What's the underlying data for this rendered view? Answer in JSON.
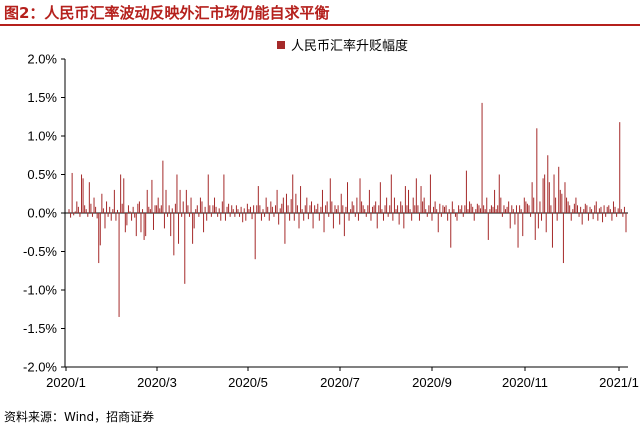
{
  "figure": {
    "title": "图2：人民币汇率波动反映外汇市场仍能自求平衡",
    "source": "资料来源：Wind，招商证券"
  },
  "colors": {
    "title": "#b5201c",
    "series": "#a52a2a",
    "axis": "#000000"
  },
  "chart_data": {
    "type": "bar",
    "title": "",
    "xlabel": "",
    "ylabel": "",
    "legend": {
      "position": "top-center"
    },
    "grid": false,
    "ylim": [
      -2.0,
      2.0
    ],
    "ytick_labels": [
      "2.0%",
      "1.5%",
      "1.0%",
      "0.5%",
      "0.0%",
      "-0.5%",
      "-1.0%",
      "-1.5%",
      "-2.0%"
    ],
    "xtick_labels": [
      "2020/1",
      "2020/3",
      "2020/5",
      "2020/7",
      "2020/9",
      "2020/11",
      "2021/1"
    ],
    "x_start": "2020-01-02",
    "x_end": "2021-01-31",
    "series": [
      {
        "name": "人民币汇率升贬幅度",
        "unit": "%",
        "values": [
          0.05,
          -0.06,
          0.52,
          -0.03,
          0.02,
          0.15,
          0.08,
          -0.05,
          0.5,
          0.45,
          0.1,
          0.05,
          -0.05,
          0.4,
          0.12,
          -0.05,
          0.2,
          0.08,
          -0.07,
          -0.65,
          -0.42,
          0.25,
          0.06,
          -0.2,
          0.15,
          -0.05,
          0.08,
          -0.1,
          0.05,
          0.3,
          -0.1,
          0.04,
          -1.35,
          0.5,
          0.12,
          0.45,
          -0.25,
          -0.16,
          0.1,
          0.02,
          -0.1,
          0.08,
          -0.06,
          -0.3,
          0.12,
          0.15,
          -0.25,
          0.05,
          -0.35,
          -0.3,
          0.3,
          0.08,
          0.05,
          0.43,
          -0.22,
          0.1,
          0.1,
          0.2,
          0.06,
          0.1,
          0.68,
          -0.2,
          0.3,
          -0.05,
          0.1,
          -0.3,
          0.06,
          -0.55,
          0.12,
          0.5,
          -0.4,
          0.3,
          -0.05,
          0.15,
          -0.92,
          0.3,
          0.1,
          -0.05,
          0.2,
          -0.4,
          -0.2,
          0.05,
          0.1,
          -0.05,
          0.2,
          0.15,
          -0.25,
          0.08,
          -0.1,
          0.5,
          0.1,
          -0.05,
          0.1,
          0.2,
          0.08,
          -0.05,
          0.06,
          -0.1,
          0.15,
          0.5,
          -0.1,
          0.08,
          0.12,
          -0.05,
          0.1,
          0.05,
          -0.05,
          0.1,
          0.05,
          -0.05,
          0.08,
          -0.12,
          0.06,
          -0.1,
          0.12,
          0.05,
          0.08,
          -0.08,
          0.1,
          -0.6,
          0.1,
          0.35,
          0.1,
          -0.1,
          0.05,
          -0.05,
          0.2,
          0.08,
          -0.1,
          0.15,
          0.08,
          -0.05,
          0.1,
          0.3,
          -0.15,
          0.06,
          0.12,
          0.2,
          -0.4,
          0.25,
          0.1,
          -0.1,
          0.18,
          0.5,
          -0.1,
          0.25,
          0.1,
          -0.2,
          0.35,
          0.05,
          -0.1,
          0.1,
          0.2,
          -0.08,
          0.1,
          0.15,
          -0.2,
          0.1,
          0.05,
          0.12,
          -0.1,
          0.08,
          0.3,
          -0.25,
          0.1,
          0.15,
          -0.05,
          0.45,
          0.15,
          -0.2,
          0.1,
          0.05,
          0.1,
          -0.15,
          0.25,
          0.1,
          -0.3,
          0.08,
          0.4,
          -0.1,
          0.05,
          0.15,
          0.1,
          -0.05,
          0.2,
          -0.1,
          0.45,
          0.15,
          0.1,
          0.05,
          -0.05,
          0.1,
          0.3,
          -0.1,
          0.08,
          0.1,
          0.15,
          -0.2,
          0.1,
          0.4,
          0.05,
          -0.1,
          0.1,
          0.2,
          -0.05,
          0.1,
          0.5,
          -0.1,
          0.2,
          0.05,
          0.1,
          -0.15,
          0.15,
          0.1,
          -0.2,
          0.35,
          0.1,
          0.3,
          0.05,
          -0.1,
          0.2,
          0.1,
          0.45,
          0.1,
          -0.1,
          0.35,
          0.15,
          0.2,
          0.05,
          -0.05,
          0.1,
          0.5,
          -0.1,
          0.08,
          0.15,
          0.05,
          -0.25,
          0.12,
          -0.05,
          0.1,
          0.08,
          0.1,
          -0.1,
          0.05,
          -0.45,
          0.15,
          0.05,
          -0.05,
          -0.1,
          0.1,
          0.05,
          0.1,
          -0.05,
          0.1,
          0.55,
          0.05,
          0.15,
          0.12,
          0.08,
          -0.1,
          0.05,
          0.12,
          0.1,
          0.06,
          1.43,
          0.1,
          0.05,
          0.2,
          -0.35,
          0.05,
          0.1,
          0.08,
          0.3,
          0.05,
          0.1,
          0.5,
          0.2,
          -0.05,
          0.1,
          0.05,
          0.08,
          0.15,
          -0.2,
          0.1,
          0.05,
          -0.15,
          0.1,
          -0.45,
          0.1,
          0.05,
          -0.3,
          0.2,
          0.15,
          0.12,
          0.1,
          -0.05,
          0.4,
          0.2,
          -0.35,
          1.1,
          -0.2,
          0.15,
          -0.1,
          0.45,
          0.5,
          -0.25,
          0.75,
          0.4,
          0.1,
          -0.45,
          0.5,
          0.2,
          -0.1,
          0.6,
          0.3,
          0.25,
          -0.65,
          0.4,
          0.2,
          0.15,
          0.1,
          -0.1,
          0.05,
          0.12,
          0.2,
          0.1,
          -0.05,
          0.08,
          -0.15,
          0.05,
          0.12,
          0.1,
          -0.1,
          0.08,
          0.05,
          -0.08,
          0.1,
          0.15,
          -0.1,
          0.06,
          0.08,
          -0.12,
          0.1,
          -0.05,
          0.08,
          0.1,
          0.05,
          -0.1,
          0.15,
          0.08,
          -0.05,
          0.06,
          1.18,
          0.05,
          -0.05,
          0.08,
          -0.25
        ]
      }
    ]
  }
}
